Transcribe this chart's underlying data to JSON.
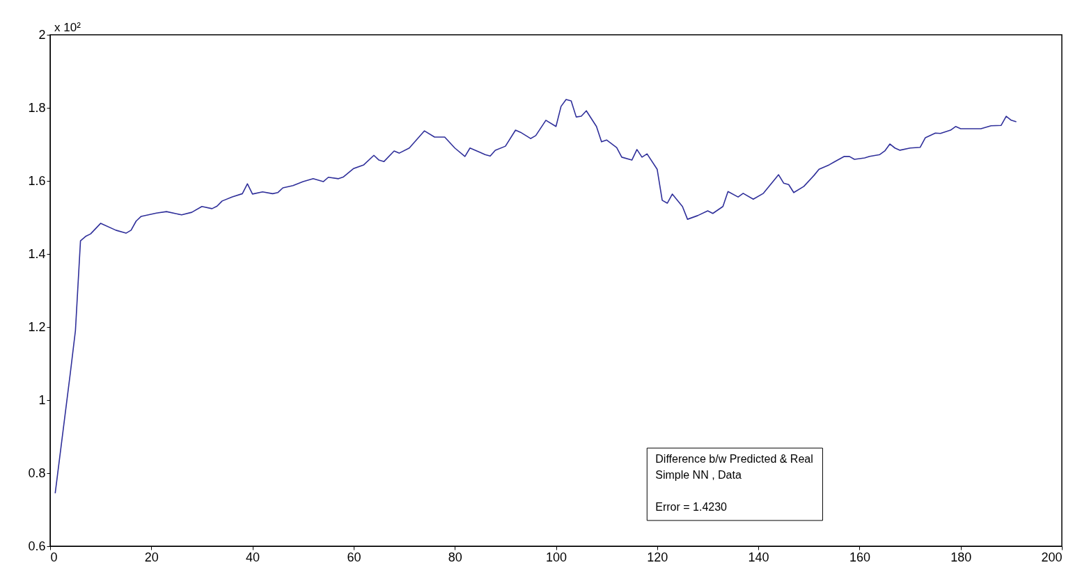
{
  "chart_data": {
    "type": "line",
    "xlim": [
      0,
      200
    ],
    "xticks": [
      0,
      20,
      40,
      60,
      80,
      100,
      120,
      140,
      160,
      180,
      200
    ],
    "ylim": [
      0.6,
      2
    ],
    "yticks": [
      0.6,
      0.8,
      1,
      1.2,
      1.4,
      1.6,
      1.8,
      2
    ],
    "marker": "none",
    "line_style": "solid",
    "annotations": [
      "x 10²",
      "Difference b/w Predicted & Real\nSimple NN , Data\n\nError = 1.4230"
    ],
    "series": [
      {
        "color": "#2f2f9a",
        "x": [
          1,
          2,
          3,
          4,
          5,
          6,
          7,
          8,
          10,
          13,
          15,
          16,
          17,
          18,
          21,
          23,
          26,
          28,
          30,
          32,
          33,
          34,
          36,
          38,
          39,
          40,
          42,
          44,
          45,
          46,
          48,
          50,
          52,
          54,
          55,
          57,
          58,
          60,
          62,
          64,
          65,
          66,
          68,
          69,
          71,
          74,
          76,
          78,
          80,
          82,
          83,
          85,
          86,
          87,
          88,
          90,
          92,
          93,
          95,
          96,
          98,
          100,
          101,
          102,
          103,
          104,
          105,
          106,
          108,
          109,
          110,
          112,
          113,
          115,
          116,
          117,
          118,
          120,
          121,
          122,
          123,
          125,
          126,
          128,
          130,
          131,
          133,
          134,
          136,
          137,
          139,
          141,
          144,
          145,
          146,
          147,
          149,
          151,
          152,
          154,
          155,
          157,
          158,
          159,
          161,
          162,
          164,
          165,
          166,
          167,
          168,
          170,
          172,
          173,
          175,
          176,
          178,
          179,
          180,
          184,
          186,
          188,
          189,
          190,
          191
        ],
        "values": [
          0.745,
          0.855,
          0.965,
          1.075,
          1.19,
          1.436,
          1.448,
          1.455,
          1.484,
          1.465,
          1.457,
          1.465,
          1.49,
          1.503,
          1.512,
          1.516,
          1.507,
          1.514,
          1.53,
          1.524,
          1.531,
          1.545,
          1.556,
          1.565,
          1.592,
          1.564,
          1.57,
          1.565,
          1.568,
          1.581,
          1.587,
          1.598,
          1.606,
          1.598,
          1.61,
          1.606,
          1.611,
          1.634,
          1.644,
          1.67,
          1.657,
          1.653,
          1.682,
          1.676,
          1.69,
          1.737,
          1.72,
          1.72,
          1.69,
          1.667,
          1.69,
          1.678,
          1.672,
          1.668,
          1.684,
          1.695,
          1.739,
          1.733,
          1.716,
          1.724,
          1.766,
          1.749,
          1.804,
          1.823,
          1.819,
          1.775,
          1.777,
          1.792,
          1.749,
          1.707,
          1.712,
          1.691,
          1.665,
          1.657,
          1.686,
          1.665,
          1.674,
          1.632,
          1.547,
          1.539,
          1.564,
          1.53,
          1.495,
          1.505,
          1.518,
          1.511,
          1.53,
          1.571,
          1.556,
          1.566,
          1.55,
          1.566,
          1.617,
          1.594,
          1.59,
          1.568,
          1.585,
          1.615,
          1.632,
          1.644,
          1.652,
          1.667,
          1.667,
          1.659,
          1.663,
          1.667,
          1.672,
          1.682,
          1.701,
          1.69,
          1.684,
          1.69,
          1.692,
          1.718,
          1.731,
          1.73,
          1.739,
          1.749,
          1.743,
          1.743,
          1.751,
          1.752,
          1.777,
          1.766,
          1.762
        ]
      }
    ]
  }
}
